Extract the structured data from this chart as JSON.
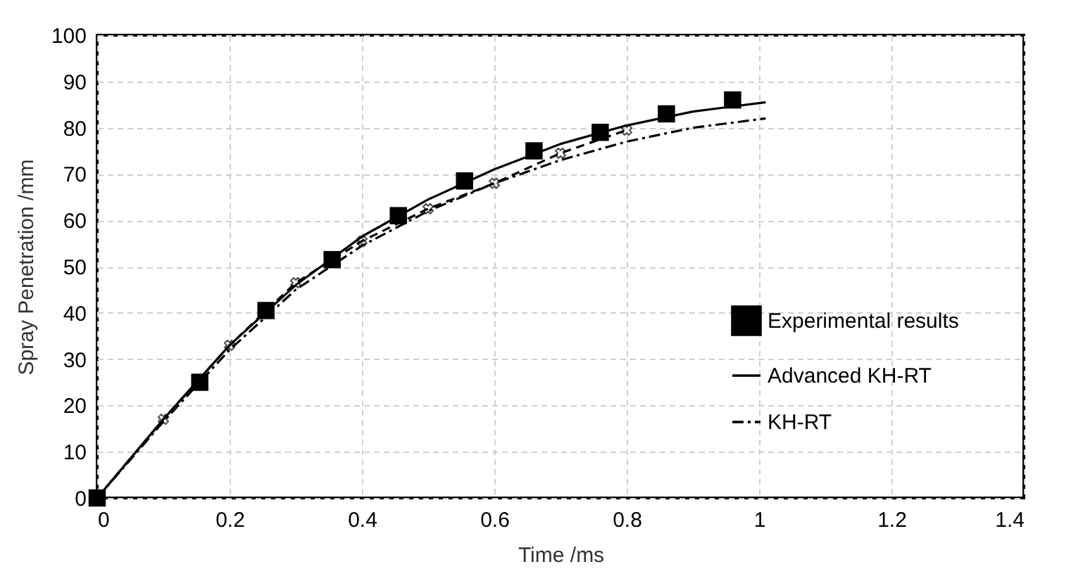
{
  "chart_data": {
    "type": "line",
    "xlabel": "Time /ms",
    "ylabel": "Spray Penetration /mm",
    "xlim": [
      0,
      1.4
    ],
    "xticks": [
      0,
      0.2,
      0.4,
      0.6,
      0.8,
      1,
      1.2,
      1.4
    ],
    "ylim": [
      0,
      100
    ],
    "yticks": [
      0,
      10,
      20,
      30,
      40,
      50,
      60,
      70,
      80,
      90,
      100
    ],
    "grid": true,
    "legend": "bottom right",
    "series": [
      {
        "name": "Experimental results",
        "type": "scatter",
        "marker": "square",
        "color": "#000000",
        "x": [
          0,
          0.155,
          0.255,
          0.355,
          0.455,
          0.555,
          0.66,
          0.76,
          0.86,
          0.96
        ],
        "values": [
          0,
          25,
          40.5,
          51.5,
          61,
          68.5,
          75,
          79,
          83,
          86
        ]
      },
      {
        "name": "Advanced KH-RT",
        "type": "line",
        "line_style": "solid",
        "color": "#000000",
        "x": [
          0,
          0.1,
          0.2,
          0.3,
          0.4,
          0.5,
          0.6,
          0.7,
          0.8,
          0.9,
          1.01
        ],
        "values": [
          0,
          17,
          33,
          46,
          56.5,
          64.5,
          71,
          76.5,
          80.5,
          83.5,
          85.5
        ]
      },
      {
        "name": "KH-RT",
        "type": "line",
        "line_style": "dashdot",
        "color": "#000000",
        "x": [
          0,
          0.1,
          0.2,
          0.3,
          0.4,
          0.5,
          0.6,
          0.7,
          0.8,
          0.9,
          1.01
        ],
        "values": [
          0,
          16.5,
          32,
          45,
          54.5,
          62,
          68,
          73,
          77,
          80,
          82
        ]
      },
      {
        "type": "line",
        "line_style": "dashed",
        "marker": "cross",
        "color": "#000000",
        "x": [
          0,
          0.1,
          0.2,
          0.3,
          0.4,
          0.5,
          0.6,
          0.7,
          0.8
        ],
        "values": [
          0,
          17,
          33,
          46.5,
          55.5,
          62.5,
          68,
          74.5,
          79.5
        ]
      }
    ]
  }
}
